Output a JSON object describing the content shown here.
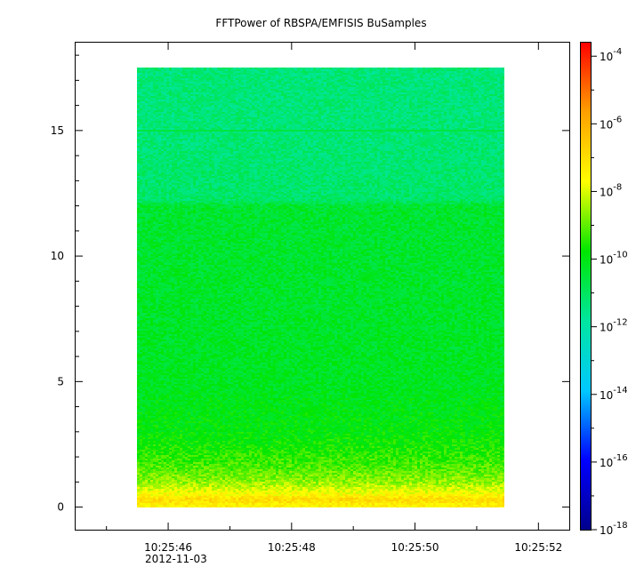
{
  "chart_data": {
    "type": "heatmap",
    "title": "FFTPower of RBSPA/EMFISIS  BuSamples",
    "xlabel": "",
    "ylabel": "",
    "x_ticks": [
      "10:25:46",
      "10:25:48",
      "10:25:50",
      "10:25:52"
    ],
    "x_tick_sublabel": "2012-11-03",
    "xlim_seconds": [
      44.5,
      52.5
    ],
    "data_x_range_seconds": [
      45.5,
      51.45
    ],
    "y_ticks": [
      0,
      5,
      10,
      15
    ],
    "ylim": [
      -0.9,
      18.5
    ],
    "data_y_range": [
      0,
      17.5
    ],
    "colorbar": {
      "scale": "log",
      "range_exponent": [
        -18,
        -3.6
      ],
      "tick_exponents": [
        -18,
        -16,
        -14,
        -12,
        -10,
        -8,
        -6,
        -4
      ],
      "tick_labels": [
        "10",
        "10",
        "10",
        "10",
        "10",
        "10",
        "10",
        "10"
      ],
      "tick_superscripts": [
        "-18",
        "-16",
        "-14",
        "-12",
        "-10",
        "-8",
        "-6",
        "-4"
      ],
      "colors": [
        "#00008c",
        "#0000ff",
        "#00c8ff",
        "#00e6a0",
        "#00e600",
        "#ffff00",
        "#ffa000",
        "#ff0000"
      ]
    },
    "power_profile": [
      {
        "y": 0.1,
        "log10_power": -7.4
      },
      {
        "y": 0.3,
        "log10_power": -6.9
      },
      {
        "y": 0.5,
        "log10_power": -7.6
      },
      {
        "y": 1.0,
        "log10_power": -8.6
      },
      {
        "y": 1.5,
        "log10_power": -9.1
      },
      {
        "y": 2.0,
        "log10_power": -9.4
      },
      {
        "y": 2.5,
        "log10_power": -9.7
      },
      {
        "y": 3.0,
        "log10_power": -9.9
      },
      {
        "y": 5.0,
        "log10_power": -10.2
      },
      {
        "y": 8.0,
        "log10_power": -10.3
      },
      {
        "y": 12.0,
        "log10_power": -10.4
      },
      {
        "y": 12.2,
        "log10_power": -11.1
      },
      {
        "y": 15.0,
        "log10_power": -11.3
      },
      {
        "y": 17.5,
        "log10_power": -11.3
      }
    ],
    "lines": [
      {
        "y": 15.0,
        "log10_power": -10.6
      }
    ]
  }
}
